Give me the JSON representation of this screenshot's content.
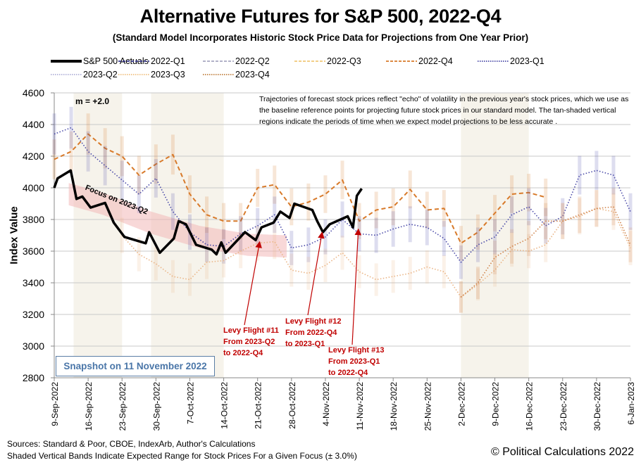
{
  "chart_data": {
    "type": "line",
    "title": "Alternative Futures for S&P 500, 2022-Q4",
    "subtitle": "(Standard Model Incorporates Historic Stock Price Data for Projections from One Year Prior)",
    "xlabel": "",
    "ylabel": "Index Value",
    "ylim": [
      2800,
      4600
    ],
    "yticks": [
      2800,
      3000,
      3200,
      3400,
      3600,
      3800,
      4000,
      4200,
      4400,
      4600
    ],
    "xlim_days": [
      0,
      119
    ],
    "xtick_labels": [
      "9-Sep-2022",
      "16-Sep-2022",
      "23-Sep-2022",
      "30-Sep-2022",
      "7-Oct-2022",
      "14-Oct-2022",
      "21-Oct-2022",
      "28-Oct-2022",
      "4-Nov-2022",
      "11-Nov-2022",
      "18-Nov-2022",
      "25-Nov-2022",
      "2-Dec-2022",
      "9-Dec-2022",
      "16-Dec-2022",
      "23-Dec-2022",
      "30-Dec-2022",
      "6-Jan-2023"
    ],
    "grid": true,
    "legend_position": "top",
    "legend": [
      {
        "name": "S&P 500 Actuals",
        "style": "solid",
        "color": "#000000"
      },
      {
        "name": "2022-Q1",
        "style": "dash",
        "color": "#3b3b8f"
      },
      {
        "name": "2022-Q2",
        "style": "dash",
        "color": "#a8a8c0"
      },
      {
        "name": "2022-Q3",
        "style": "dash",
        "color": "#f0c878"
      },
      {
        "name": "2022-Q4",
        "style": "dash",
        "color": "#d87a2a"
      },
      {
        "name": "2023-Q1",
        "style": "dot",
        "color": "#4a4aa8"
      },
      {
        "name": "2023-Q2",
        "style": "dot",
        "color": "#b0b0d8"
      },
      {
        "name": "2023-Q3",
        "style": "dot",
        "color": "#f0c080"
      },
      {
        "name": "2023-Q4",
        "style": "dot",
        "color": "#c08040"
      }
    ],
    "series": [
      {
        "name": "S&P 500 Actuals",
        "x_days": [
          0,
          0.7,
          3.4,
          4.6,
          5.8,
          7.5,
          10.5,
          12.3,
          14.5,
          18.9,
          19.6,
          21.8,
          24.7,
          25.7,
          27.2,
          29.3,
          32.5,
          33.5,
          34.5,
          35.4,
          39.4,
          41.6,
          42.8,
          45.3,
          46.7,
          48.6,
          49.6,
          53.3,
          54.3,
          55.5,
          56.9,
          60.6,
          61.7,
          62.5,
          63.5
        ],
        "values": [
          4000,
          4060,
          4110,
          3930,
          3945,
          3875,
          3905,
          3780,
          3690,
          3650,
          3720,
          3590,
          3680,
          3790,
          3770,
          3640,
          3610,
          3580,
          3655,
          3590,
          3720,
          3670,
          3750,
          3780,
          3850,
          3810,
          3900,
          3860,
          3790,
          3720,
          3770,
          3820,
          3750,
          3950,
          3995
        ]
      },
      {
        "name": "2022-Q4",
        "x_days": [
          0,
          3.5,
          7,
          10.5,
          14,
          17.5,
          21,
          24.5,
          28,
          31.5,
          35,
          38.5,
          42,
          45.5,
          49,
          52.5,
          56,
          59.5,
          63,
          66.5,
          70,
          73.5,
          77,
          80.5,
          84,
          87.5,
          91,
          94.5,
          98,
          101.5
        ],
        "values": [
          4180,
          4230,
          4340,
          4250,
          4200,
          4080,
          4150,
          4210,
          3960,
          3830,
          3790,
          3790,
          4000,
          4020,
          3880,
          3910,
          3960,
          4050,
          3790,
          3860,
          3880,
          3990,
          3860,
          3870,
          3650,
          3720,
          3840,
          3960,
          3970,
          3940
        ]
      },
      {
        "name": "2023-Q1",
        "x_days": [
          0,
          3.5,
          7,
          10.5,
          14,
          17.5,
          21,
          24.5,
          28,
          31.5,
          35,
          38.5,
          42,
          45.5,
          49,
          52.5,
          56,
          59.5,
          63,
          66.5,
          70,
          73.5,
          77,
          80.5,
          84,
          87.5,
          91,
          94.5,
          98,
          101.5,
          105,
          108.5,
          112,
          115.5,
          119
        ],
        "values": [
          4340,
          4380,
          4230,
          4140,
          4050,
          3960,
          4060,
          3850,
          3720,
          3640,
          3630,
          3710,
          3760,
          3830,
          3620,
          3640,
          3690,
          3800,
          3710,
          3700,
          3740,
          3770,
          3750,
          3680,
          3530,
          3640,
          3690,
          3830,
          3880,
          3760,
          3820,
          4080,
          4110,
          4080,
          3850
        ]
      },
      {
        "name": "2023-Q3",
        "x_days": [
          14,
          17.5,
          21,
          24.5,
          28,
          31.5,
          35,
          38.5,
          42,
          45.5,
          49,
          52.5,
          56,
          59.5,
          63,
          66.5,
          70,
          73.5,
          77,
          80.5,
          84,
          87.5,
          91,
          94.5,
          98,
          101.5,
          105,
          108.5,
          112,
          115.5,
          119
        ],
        "values": [
          3700,
          3580,
          3520,
          3440,
          3420,
          3530,
          3540,
          3600,
          3650,
          3660,
          3480,
          3460,
          3510,
          3590,
          3470,
          3420,
          3440,
          3460,
          3500,
          3470,
          3310,
          3390,
          3480,
          3610,
          3600,
          3640,
          3790,
          3820,
          3870,
          3850,
          3620
        ]
      },
      {
        "name": "2023-Q4",
        "x_days": [
          84,
          87.5,
          91,
          94.5,
          98,
          101.5,
          105,
          108.5,
          112,
          115.5,
          119
        ],
        "values": [
          3310,
          3400,
          3560,
          3630,
          3680,
          3790,
          3790,
          3830,
          3870,
          3880,
          3640
        ]
      }
    ],
    "annotations": [
      {
        "text": "m = +2.0"
      },
      {
        "text": "Focus on 2023-Q2"
      },
      {
        "lines": [
          "Levy Flight #11",
          "From 2023-Q2",
          "to 2022-Q4"
        ],
        "target_date": "21-Oct-2022"
      },
      {
        "lines": [
          "Levy Flight #12",
          "From 2022-Q4",
          "to 2023-Q1"
        ],
        "target_date": "4-Nov-2022"
      },
      {
        "lines": [
          "Levy Flight #13",
          "From 2023-Q1",
          "to 2022-Q4"
        ],
        "target_date": "11-Nov-2022"
      }
    ]
  },
  "note": "Trajectories of forecast stock prices reflect \"echo\" of volatility in  the previous year's stock prices, which we use as the baseline reference points for projecting future stock prices in our standard model.   The tan-shaded vertical regions indicate the periods of time when we expect model projections to be less accurate .",
  "snapshot": "Snapshot on 11 November 2022",
  "footer": {
    "sources": "Sources: Standard & Poor, CBOE, IndexArb, Author's Calculations",
    "bands": "Shaded Vertical Bands Indicate Expected Range for Stock Prices For a Given Focus  (± 3.0%)",
    "copyright": "© Political Calculations 2022"
  }
}
